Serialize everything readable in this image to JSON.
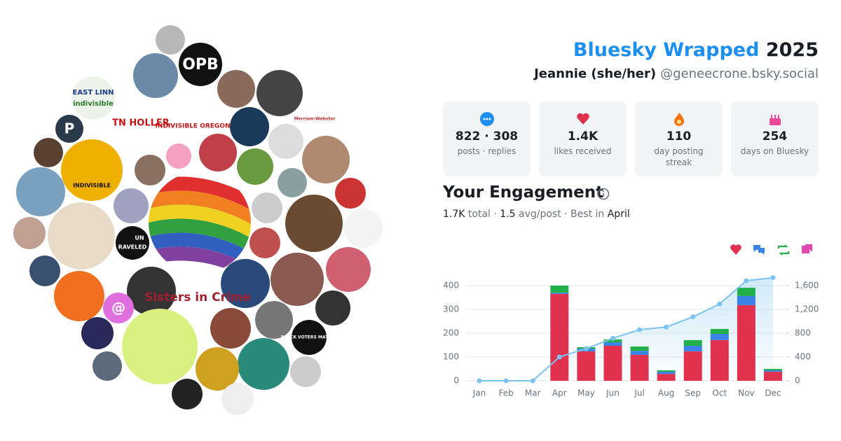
{
  "header": {
    "title": "Bluesky Wrapped",
    "year": "2025",
    "name": "Jeannie (she/her)",
    "handle": "@geneecrone.bsky.social"
  },
  "stats": [
    {
      "value": "822 · 308",
      "label": "posts · replies"
    },
    {
      "value": "1.4K",
      "label": "likes received"
    },
    {
      "value": "110",
      "label": "day posting streak"
    },
    {
      "value": "254",
      "label": "days on Bluesky"
    }
  ],
  "collage": {
    "logos": [
      "OPB",
      "EAST LINN",
      "indivisible",
      "Merriam-Webster",
      "P",
      "TN HOLLER",
      "INDIVISIBLE OREGON",
      "INDIVISIBLE",
      "UN",
      "RAVELED",
      "Sisters in Crime",
      "@",
      "BLACK VOTERS MATTER"
    ]
  },
  "engagement": {
    "title": "Your Engagement",
    "summary": [
      "1.7K",
      "total ·",
      "1.5",
      "avg/post · Best in",
      "April"
    ]
  },
  "chart_data": {
    "type": "bar",
    "categories": [
      "Jan",
      "Feb",
      "Mar",
      "Apr",
      "May",
      "Jun",
      "Jul",
      "Aug",
      "Sep",
      "Oct",
      "Nov",
      "Dec"
    ],
    "series": [
      {
        "color": "#e0314f",
        "values": [
          0,
          0,
          0,
          365,
          124,
          147,
          109,
          29,
          124,
          171,
          318,
          38
        ]
      },
      {
        "color": "#3b82e6",
        "values": [
          0,
          0,
          0,
          5,
          11,
          15,
          17,
          9,
          23,
          26,
          38,
          6
        ]
      },
      {
        "color": "#22b04b",
        "values": [
          0,
          0,
          0,
          30,
          6,
          12,
          18,
          6,
          24,
          21,
          35,
          6
        ]
      },
      {
        "color": "#e04ab0",
        "values": [
          0,
          0,
          0,
          0,
          0,
          0,
          0,
          0,
          0,
          0,
          0,
          0
        ]
      },
      {
        "color": "#7cc4ef",
        "axis": "y2",
        "type": "line",
        "values": [
          0,
          0,
          0,
          400,
          541,
          715,
          859,
          903,
          1074,
          1292,
          1683,
          1733
        ]
      }
    ],
    "ylim": [
      0,
      450
    ],
    "yticks": [
      0,
      100,
      200,
      300,
      400
    ],
    "y2lim": [
      0,
      1800
    ],
    "y2ticks": [
      0,
      400,
      800,
      {
        "value": 1200,
        "label": "1,200"
      },
      {
        "value": 1600,
        "label": "1,600"
      }
    ],
    "grid": true
  }
}
